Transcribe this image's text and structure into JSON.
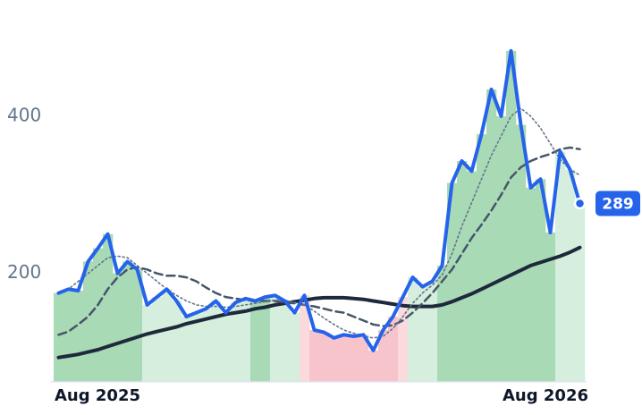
{
  "chart_data": {
    "type": "line",
    "categories": [
      "Aug 2025",
      null,
      null,
      null,
      null,
      null,
      null,
      null,
      null,
      null,
      null,
      null,
      null,
      null,
      null,
      null,
      null,
      null,
      null,
      null,
      null,
      null,
      null,
      null,
      null,
      null,
      null,
      null,
      null,
      null,
      null,
      null,
      null,
      null,
      null,
      null,
      null,
      null,
      null,
      null,
      null,
      null,
      null,
      null,
      null,
      null,
      null,
      null,
      null,
      null,
      null,
      null,
      "Aug 2026",
      null
    ],
    "series": [
      {
        "color": "#2563eb",
        "style": "solid",
        "values": [
          175,
          180,
          178,
          215,
          232,
          250,
          200,
          215,
          205,
          160,
          170,
          180,
          165,
          145,
          150,
          155,
          165,
          150,
          163,
          168,
          165,
          170,
          172,
          165,
          150,
          172,
          128,
          125,
          118,
          122,
          120,
          122,
          102,
          128,
          145,
          170,
          195,
          183,
          190,
          210,
          315,
          343,
          330,
          377,
          434,
          400,
          483,
          389,
          309,
          320,
          252,
          355,
          332,
          289
        ]
      },
      {
        "color": "#64748b",
        "style": "dotted",
        "values": [
          175,
          180,
          190,
          200,
          210,
          220,
          222,
          220,
          210,
          200,
          190,
          180,
          172,
          165,
          160,
          158,
          158,
          157,
          158,
          160,
          162,
          164,
          166,
          166,
          163,
          160,
          152,
          143,
          135,
          128,
          124,
          120,
          118,
          120,
          130,
          145,
          162,
          175,
          185,
          198,
          225,
          260,
          290,
          320,
          350,
          375,
          400,
          410,
          400,
          385,
          365,
          345,
          332,
          325
        ]
      },
      {
        "color": "#475569",
        "style": "dashed",
        "values": [
          122,
          126,
          135,
          145,
          160,
          180,
          195,
          205,
          208,
          205,
          200,
          197,
          197,
          195,
          190,
          182,
          175,
          170,
          168,
          166,
          165,
          165,
          165,
          163,
          162,
          160,
          158,
          155,
          152,
          150,
          145,
          140,
          135,
          133,
          134,
          140,
          150,
          162,
          175,
          190,
          205,
          225,
          245,
          262,
          280,
          300,
          322,
          335,
          343,
          348,
          352,
          358,
          360,
          358
        ]
      },
      {
        "color": "#1e293b",
        "style": "solid",
        "values": [
          93,
          95,
          97,
          100,
          103,
          107,
          111,
          115,
          119,
          123,
          126,
          129,
          132,
          136,
          139,
          142,
          145,
          148,
          150,
          152,
          155,
          157,
          160,
          162,
          164,
          166,
          168,
          169,
          169,
          169,
          168,
          167,
          165,
          163,
          161,
          159,
          158,
          158,
          158,
          160,
          164,
          169,
          174,
          180,
          186,
          192,
          198,
          204,
          210,
          214,
          218,
          222,
          227,
          233
        ]
      }
    ],
    "band_colors": [
      "#a8dab5",
      "#a8dab5",
      "#a8dab5",
      "#a8dab5",
      "#a8dab5",
      "#a8dab5",
      "#a8dab5",
      "#a8dab5",
      "#a8dab5",
      "#d5eedd",
      "#d5eedd",
      "#d5eedd",
      "#d5eedd",
      "#d5eedd",
      "#d5eedd",
      "#d5eedd",
      "#d5eedd",
      "#d5eedd",
      "#d5eedd",
      "#d5eedd",
      "#a8dab5",
      "#a8dab5",
      "#d5eedd",
      "#d5eedd",
      "#d5eedd",
      "#fadadd",
      "#f8c4cc",
      "#f8c4cc",
      "#f8c4cc",
      "#f8c4cc",
      "#f8c4cc",
      "#f8c4cc",
      "#f8c4cc",
      "#f8c4cc",
      "#f8c4cc",
      "#fadadd",
      "#d5eedd",
      "#d5eedd",
      "#d5eedd",
      "#a8dab5",
      "#a8dab5",
      "#a8dab5",
      "#a8dab5",
      "#a8dab5",
      "#a8dab5",
      "#a8dab5",
      "#a8dab5",
      "#a8dab5",
      "#a8dab5",
      "#a8dab5",
      "#a8dab5",
      "#d5eedd",
      "#d5eedd",
      "#d5eedd"
    ],
    "ylim": [
      62,
      530
    ],
    "yticks": [
      200,
      400
    ]
  }
}
